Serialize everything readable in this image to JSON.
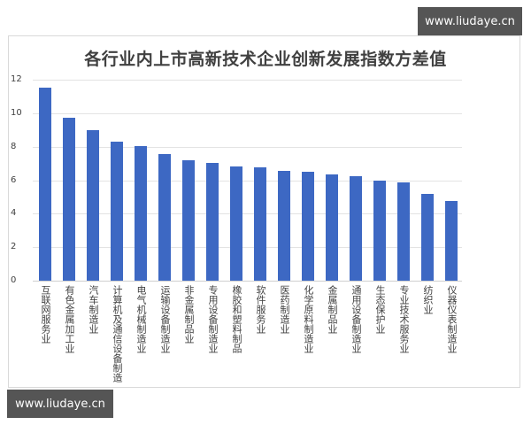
{
  "chart_data": {
    "type": "bar",
    "title": "各行业内上市高新技术企业创新发展指数方差值",
    "xlabel": "",
    "ylabel": "",
    "ylim": [
      0,
      12
    ],
    "yticks": [
      0,
      2,
      4,
      6,
      8,
      10,
      12
    ],
    "grid": true,
    "legend": "none",
    "bar_color": "#3d68c3",
    "categories": [
      "互联网服务业",
      "有色金属加工业",
      "汽车制造业",
      "计算机及通信设备制造",
      "电气机械制造业",
      "运输设备制造业",
      "非金属制品业",
      "专用设备制造业",
      "橡胶和塑料制品",
      "软件服务业",
      "医药制造业",
      "化学原料制造业",
      "金属制品业",
      "通用设备制造业",
      "生态保护业",
      "专业技术服务业",
      "纺织业",
      "仪器仪表制造业"
    ],
    "values": [
      11.5,
      9.74,
      9.0,
      8.28,
      8.06,
      7.57,
      7.18,
      7.02,
      6.83,
      6.76,
      6.55,
      6.48,
      6.35,
      6.23,
      5.96,
      5.88,
      5.17,
      4.78
    ]
  },
  "watermarks": {
    "top_right": "www.liudaye.cn",
    "bottom_left": "www.liudaye.cn"
  }
}
